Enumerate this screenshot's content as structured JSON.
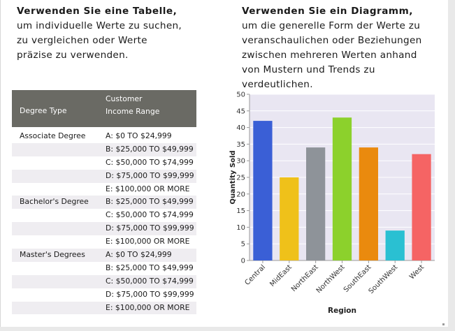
{
  "left_panel": {
    "title": "Verwenden Sie eine Tabelle,",
    "lines": [
      "um individuelle Werte zu suchen,",
      "zu vergleichen oder Werte",
      "präzise zu verwenden."
    ]
  },
  "right_panel": {
    "title": "Verwenden Sie ein Diagramm,",
    "lines": [
      "um die generelle Form der Werte zu",
      "veranschaulichen oder Beziehungen",
      "zwischen mehreren Werten anhand",
      "von Mustern und Trends zu verdeutlichen."
    ]
  },
  "table": {
    "headers": {
      "degree_type": "Degree Type",
      "income_line1": "Customer",
      "income_line2": "Income Range"
    },
    "rows": [
      {
        "degree": "Associate Degree",
        "range": "A: $0 TO $24,999"
      },
      {
        "degree": "",
        "range": "B: $25,000 TO $49,999"
      },
      {
        "degree": "",
        "range": "C: $50,000 TO $74,999"
      },
      {
        "degree": "",
        "range": "D: $75,000 TO $99,999"
      },
      {
        "degree": "",
        "range": "E: $100,000 OR MORE"
      },
      {
        "degree": "Bachelor's Degree",
        "range": "B: $25,000 TO $49,999"
      },
      {
        "degree": "",
        "range": "C: $50,000 TO $74,999"
      },
      {
        "degree": "",
        "range": "D: $75,000 TO $99,999"
      },
      {
        "degree": "",
        "range": "E: $100,000 OR MORE"
      },
      {
        "degree": "Master's Degrees",
        "range": "A: $0 TO $24,999"
      },
      {
        "degree": "",
        "range": "B: $25,000 TO $49,999"
      },
      {
        "degree": "",
        "range": "C: $50,000 TO $74,999"
      },
      {
        "degree": "",
        "range": "D: $75,000 TO $99,999"
      },
      {
        "degree": "",
        "range": "E: $100,000 OR MORE"
      }
    ]
  },
  "chart_data": {
    "type": "bar",
    "title": "",
    "xlabel": "Region",
    "ylabel": "Quantity Sold",
    "ylim": [
      0,
      50
    ],
    "yticks": [
      0,
      5,
      10,
      15,
      20,
      25,
      30,
      35,
      40,
      45,
      50
    ],
    "grid": true,
    "categories": [
      "Central",
      "MidEast",
      "NorthEast",
      "NorthWest",
      "SouthEast",
      "SouthWest",
      "West"
    ],
    "values": [
      42,
      25,
      34,
      43,
      34,
      9,
      32
    ],
    "colors": [
      "#3a5fd6",
      "#efc11a",
      "#8e9399",
      "#8cd12c",
      "#ea8a0e",
      "#2ac0d2",
      "#f56464"
    ]
  },
  "theme": {
    "plot_bg": "#e9e6f2",
    "grid_color": "#ffffff",
    "axis_color": "#9a9a9a",
    "header_bg": "#6a6a64",
    "row_alt_bg": "#efedf1"
  }
}
